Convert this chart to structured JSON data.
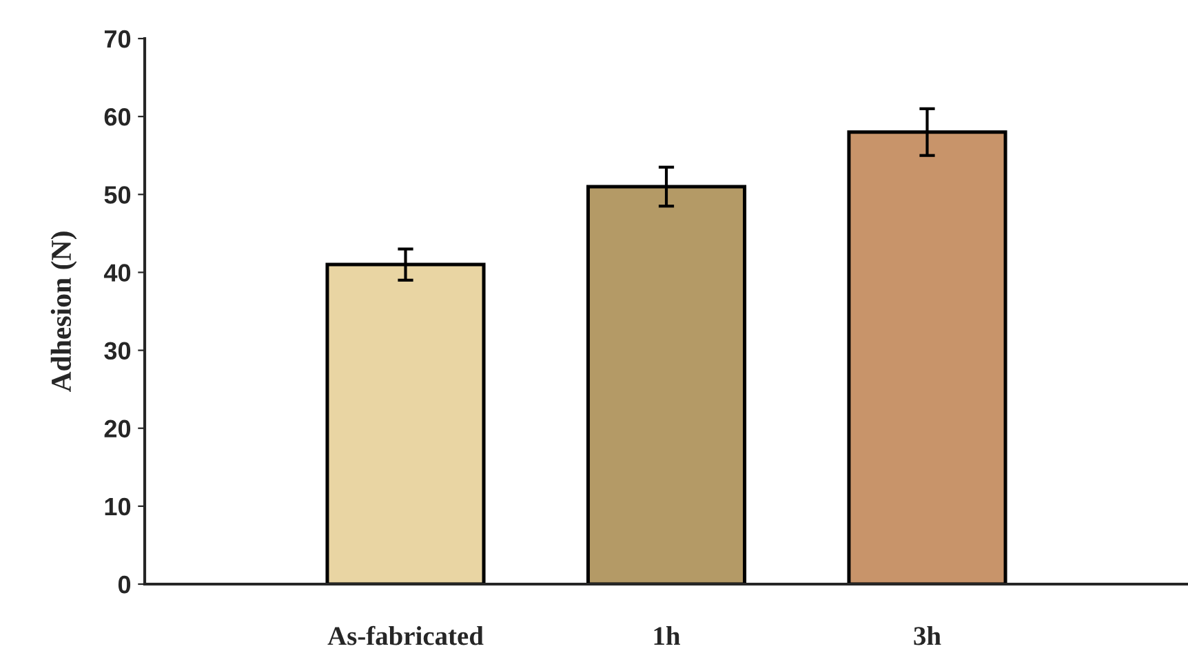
{
  "chart_data": {
    "type": "bar",
    "ylabel": "Adhesion (N)",
    "categories": [
      "As-fabricated",
      "1h",
      "3h"
    ],
    "values": [
      41,
      51,
      58
    ],
    "errors": [
      2,
      2.5,
      3
    ],
    "colors": [
      "#e9d5a3",
      "#b49a66",
      "#c8946a"
    ],
    "ylim": [
      0,
      70
    ],
    "yticks": [
      0,
      10,
      20,
      30,
      40,
      50,
      60,
      70
    ],
    "grid": false
  }
}
